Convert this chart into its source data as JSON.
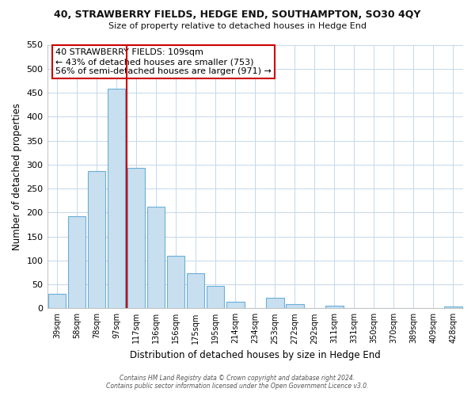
{
  "title": "40, STRAWBERRY FIELDS, HEDGE END, SOUTHAMPTON, SO30 4QY",
  "subtitle": "Size of property relative to detached houses in Hedge End",
  "xlabel": "Distribution of detached houses by size in Hedge End",
  "ylabel": "Number of detached properties",
  "bar_labels": [
    "39sqm",
    "58sqm",
    "78sqm",
    "97sqm",
    "117sqm",
    "136sqm",
    "156sqm",
    "175sqm",
    "195sqm",
    "214sqm",
    "234sqm",
    "253sqm",
    "272sqm",
    "292sqm",
    "311sqm",
    "331sqm",
    "350sqm",
    "370sqm",
    "389sqm",
    "409sqm",
    "428sqm"
  ],
  "bar_values": [
    30,
    192,
    286,
    458,
    293,
    212,
    110,
    74,
    47,
    14,
    0,
    22,
    8,
    0,
    5,
    0,
    0,
    0,
    0,
    0,
    4
  ],
  "bar_color": "#c8dff0",
  "bar_edge_color": "#6aaed6",
  "vline_color": "#cc0000",
  "ylim": [
    0,
    550
  ],
  "yticks": [
    0,
    50,
    100,
    150,
    200,
    250,
    300,
    350,
    400,
    450,
    500,
    550
  ],
  "annotation_title": "40 STRAWBERRY FIELDS: 109sqm",
  "annotation_line1": "← 43% of detached houses are smaller (753)",
  "annotation_line2": "56% of semi-detached houses are larger (971) →",
  "footer_line1": "Contains HM Land Registry data © Crown copyright and database right 2024.",
  "footer_line2": "Contains public sector information licensed under the Open Government Licence v3.0.",
  "bg_color": "#ffffff",
  "grid_color": "#c5d8ea"
}
